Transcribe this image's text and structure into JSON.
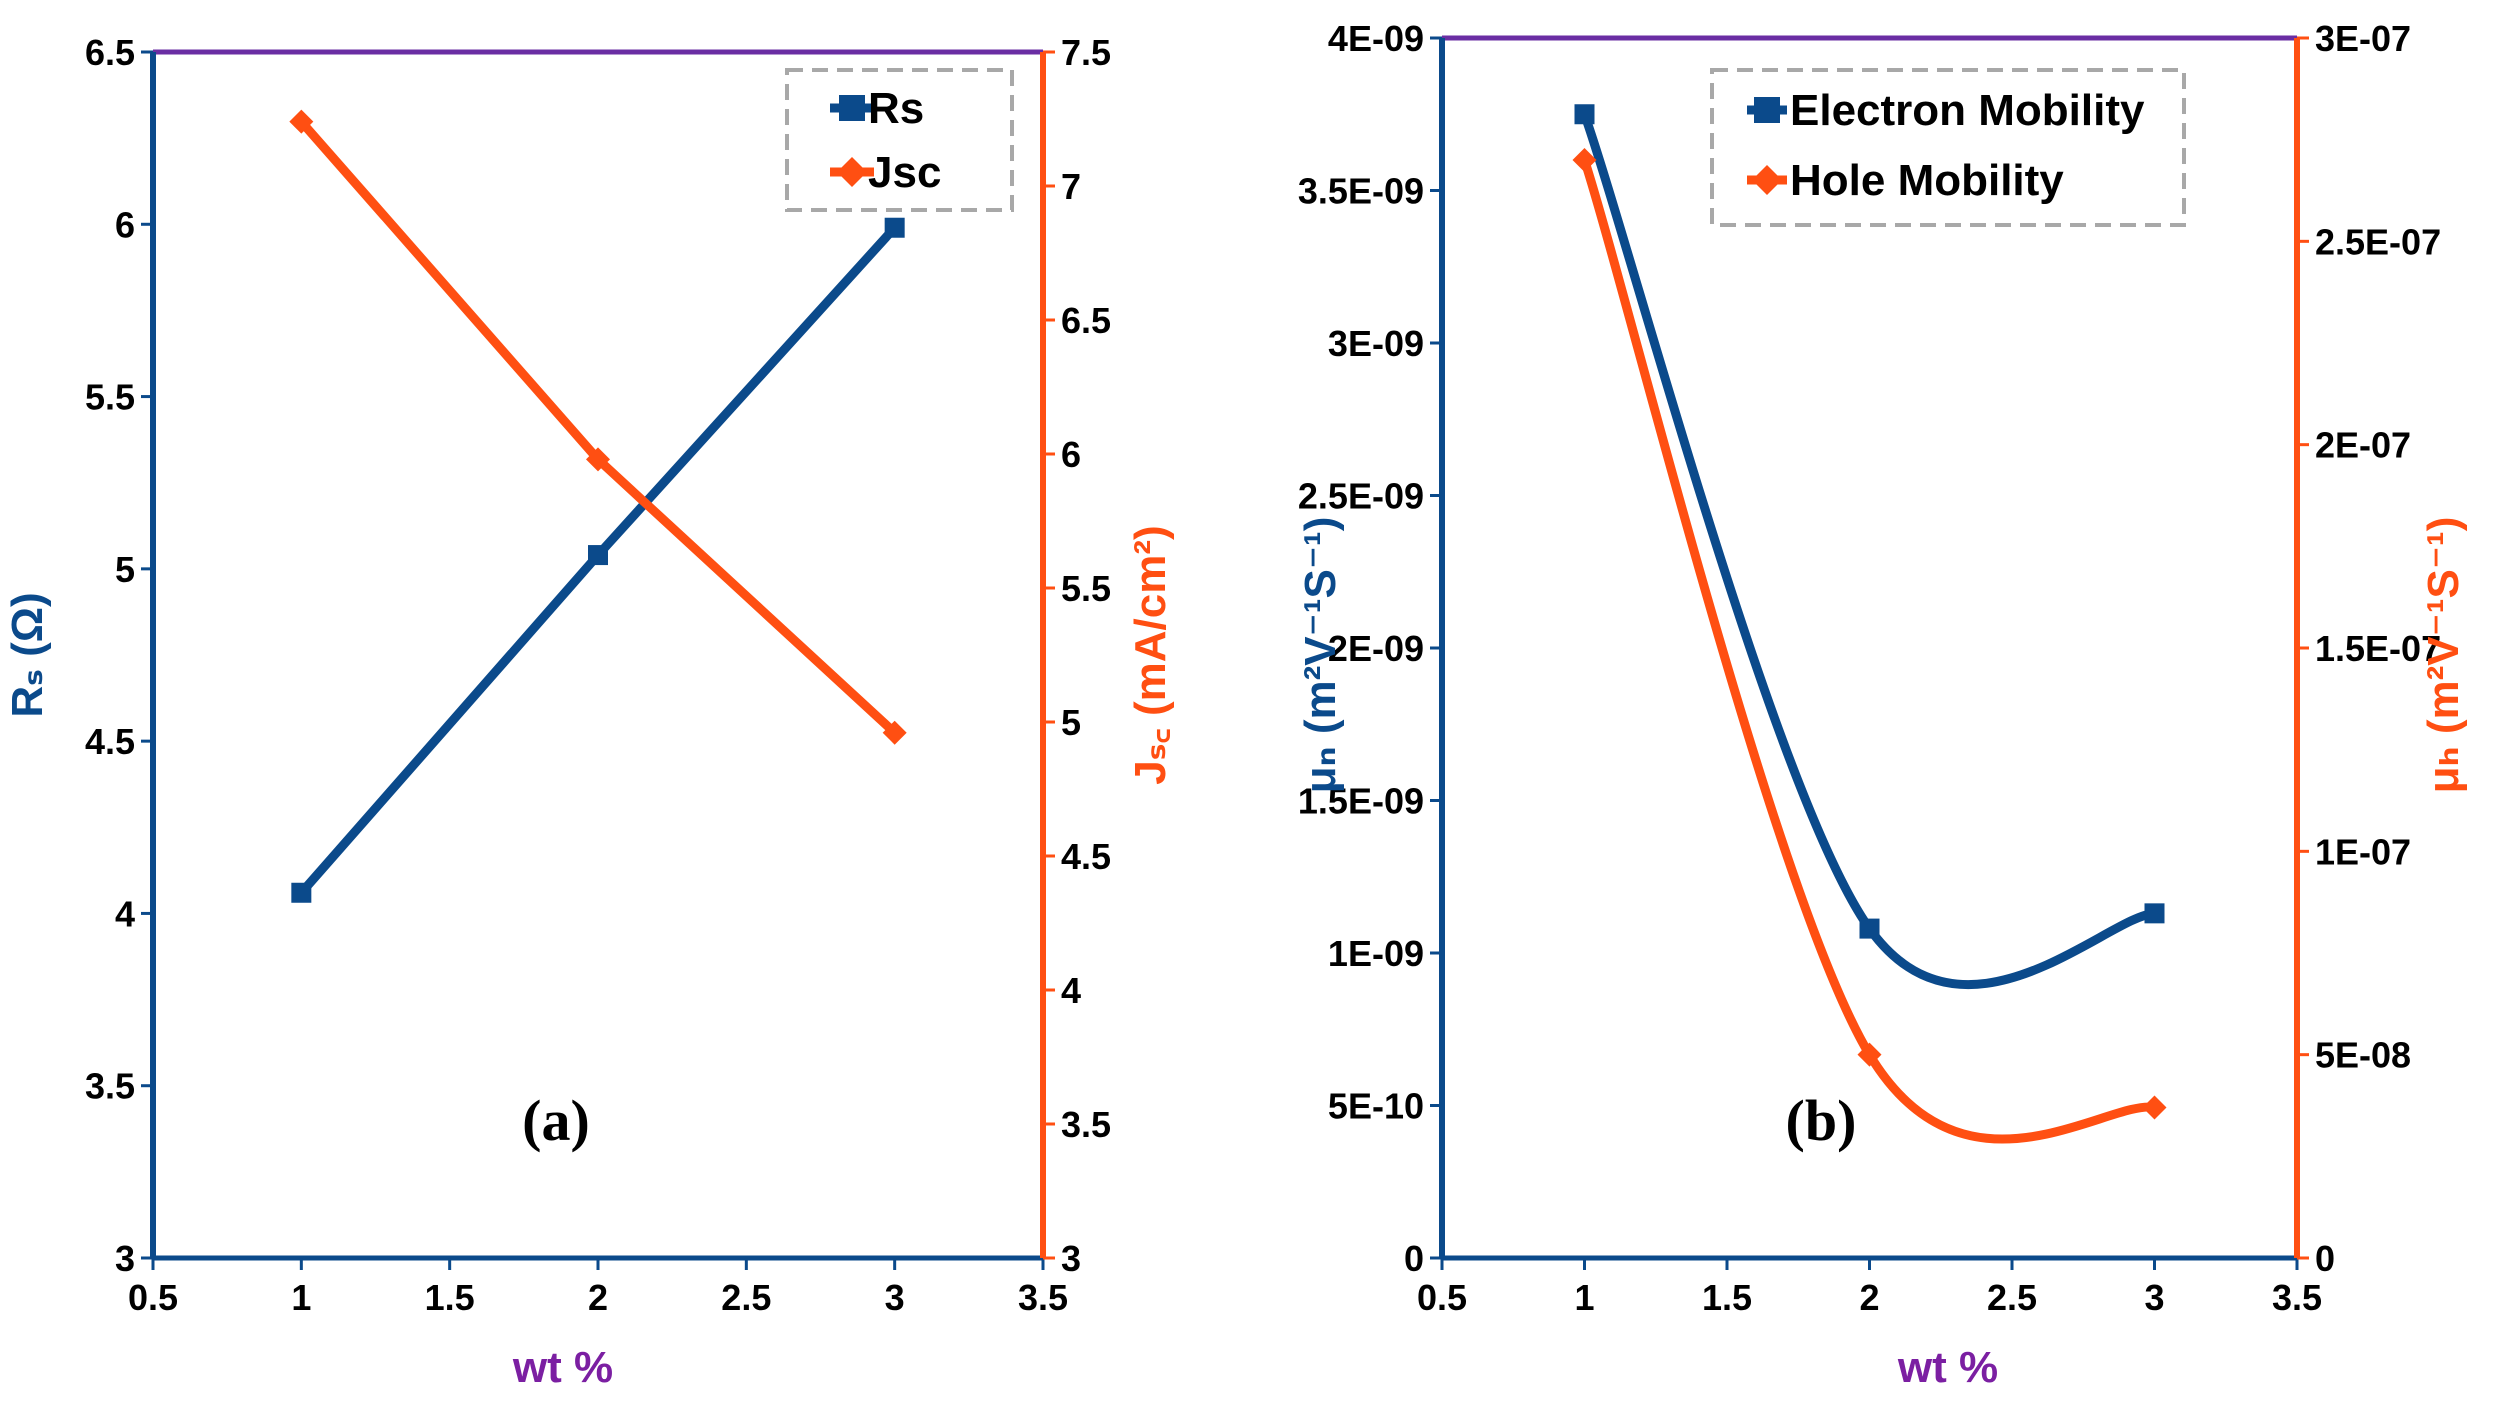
{
  "colors": {
    "series_left": "#0b4a8b",
    "series_right": "#ff4f12",
    "frame_top": "#6a2ea3",
    "xlabel": "#7b1fa2",
    "legend_border": "#a8a8a8",
    "text": "#000000"
  },
  "chart_data": [
    {
      "id": "a",
      "type": "line",
      "panel_label": "(a)",
      "xlabel": "wt %",
      "ylabel_left": "Rₛ (Ω)",
      "ylabel_right": "Jₛ꜀ (mA/cm²)",
      "xlim": [
        0.5,
        3.5
      ],
      "ylim_left": [
        3,
        6.5
      ],
      "ylim_right": [
        3,
        7.5
      ],
      "x_ticks": [
        "0.5",
        "1",
        "1.5",
        "2",
        "2.5",
        "3",
        "3.5"
      ],
      "y_ticks_left": [
        "3",
        "3.5",
        "4",
        "4.5",
        "5",
        "5.5",
        "6",
        "6.5"
      ],
      "y_ticks_right": [
        "3",
        "3.5",
        "4",
        "4.5",
        "5",
        "5.5",
        "6",
        "6.5",
        "7",
        "7.5"
      ],
      "series": [
        {
          "name": "Rs",
          "axis": "left",
          "marker": "square",
          "smooth": false,
          "x": [
            1,
            2,
            3
          ],
          "values": [
            4.06,
            5.04,
            5.99
          ]
        },
        {
          "name": "Jsc",
          "axis": "right",
          "marker": "diamond",
          "smooth": false,
          "x": [
            1,
            2,
            3
          ],
          "values": [
            7.24,
            5.98,
            4.96
          ]
        }
      ],
      "legend": [
        "Rs",
        "Jsc"
      ],
      "legend_position": "top-right"
    },
    {
      "id": "b",
      "type": "line",
      "panel_label": "(b)",
      "xlabel": "wt %",
      "ylabel_left": "μₙ (m²V⁻¹S⁻¹)",
      "ylabel_right": "μₕ (m²V⁻¹S⁻¹)",
      "xlim": [
        0.5,
        3.5
      ],
      "ylim_left": [
        0,
        4e-09
      ],
      "ylim_right": [
        0,
        3e-07
      ],
      "x_ticks": [
        "0.5",
        "1",
        "1.5",
        "2",
        "2.5",
        "3",
        "3.5"
      ],
      "y_ticks_left": [
        "0",
        "5E-10",
        "1E-09",
        "1.5E-09",
        "2E-09",
        "2.5E-09",
        "3E-09",
        "3.5E-09",
        "4E-09"
      ],
      "y_ticks_right": [
        "0",
        "5E-08",
        "1E-07",
        "1.5E-07",
        "2E-07",
        "2.5E-07",
        "3E-07"
      ],
      "series": [
        {
          "name": "Electron Mobility",
          "axis": "left",
          "marker": "square",
          "smooth": true,
          "x": [
            1,
            2,
            3
          ],
          "values": [
            3.75e-09,
            1.08e-09,
            1.13e-09
          ]
        },
        {
          "name": "Hole Mobility",
          "axis": "right",
          "marker": "diamond",
          "smooth": true,
          "x": [
            1,
            2,
            3
          ],
          "values": [
            2.7e-07,
            5e-08,
            3.7e-08
          ]
        }
      ],
      "legend": [
        "Electron Mobility",
        "Hole Mobility"
      ],
      "legend_position": "top-right"
    }
  ]
}
